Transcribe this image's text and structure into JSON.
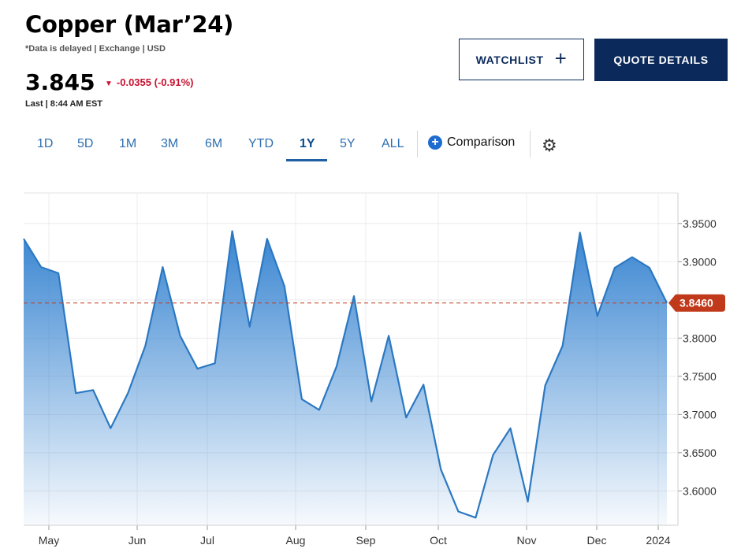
{
  "header": {
    "title": "Copper (Mar’24)",
    "subnote": "*Data is delayed | Exchange | USD",
    "price": "3.845",
    "change": "-0.0355 (-0.91%)",
    "change_arrow": "▼",
    "last_label": "Last | 8:44 AM EST"
  },
  "buttons": {
    "watchlist": "WATCHLIST",
    "watchlist_plus": "+",
    "quote_details": "QUOTE DETAILS"
  },
  "tabs": [
    {
      "label": "1D"
    },
    {
      "label": "5D"
    },
    {
      "label": "1M"
    },
    {
      "label": "3M"
    },
    {
      "label": "6M"
    },
    {
      "label": "YTD"
    },
    {
      "label": "1Y",
      "active": true
    },
    {
      "label": "5Y"
    },
    {
      "label": "ALL"
    }
  ],
  "comparison": {
    "icon": "plus-circle-icon",
    "label": "Comparison"
  },
  "settings": {
    "icon": "gear-icon"
  },
  "colors": {
    "navy": "#0b2a5b",
    "red": "#c8102e",
    "line": "#2b78c2",
    "fill_top": "#2f7fcf",
    "last_marker": "#c0391b"
  },
  "chart_data": {
    "type": "area",
    "x_labels": [
      "May",
      "Jun",
      "Jul",
      "Aug",
      "Sep",
      "Oct",
      "Nov",
      "Dec",
      "2024"
    ],
    "y_ticks": [
      "3.6000",
      "3.6500",
      "3.7000",
      "3.7500",
      "3.8000",
      "3.8500",
      "3.9000",
      "3.9500"
    ],
    "y_range": [
      3.555,
      3.99
    ],
    "last_value": "3.8460",
    "reference_value": 3.846,
    "series": [
      {
        "values": [
          3.93,
          3.893,
          3.885,
          3.728,
          3.732,
          3.682,
          3.728,
          3.79,
          3.893,
          3.803,
          3.76,
          3.767,
          3.94,
          3.815,
          3.93,
          3.868,
          3.72,
          3.706,
          3.763,
          3.855,
          3.717,
          3.803,
          3.696,
          3.739,
          3.628,
          3.573,
          3.565,
          3.647,
          3.682,
          3.586,
          3.738,
          3.79,
          3.938,
          3.829,
          3.892,
          3.906,
          3.892,
          3.846
        ]
      }
    ]
  }
}
